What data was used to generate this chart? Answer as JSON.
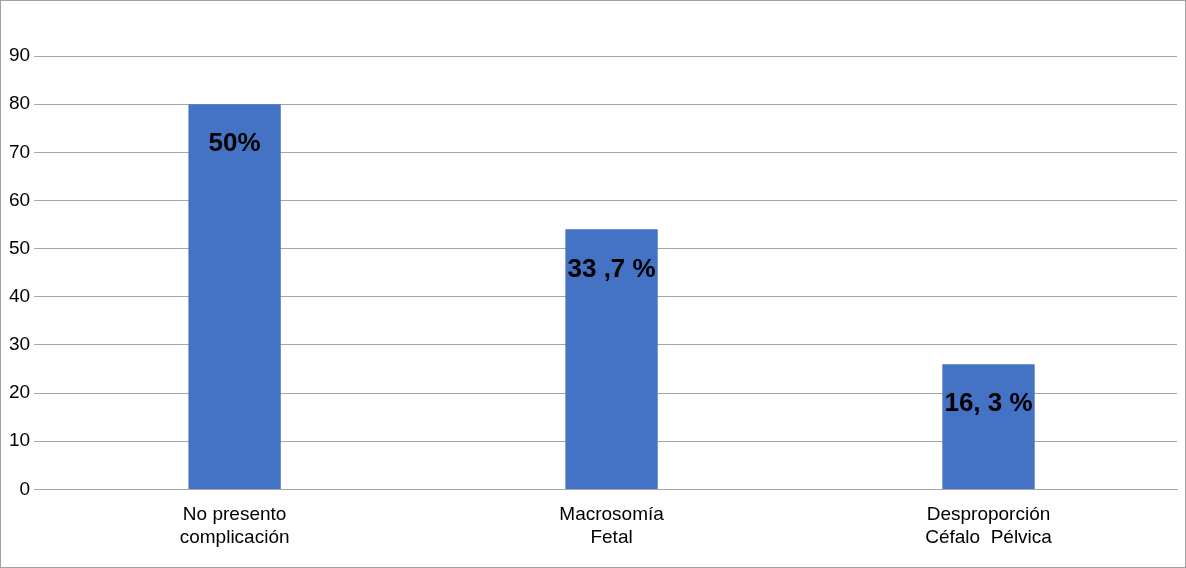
{
  "chart_data": {
    "type": "bar",
    "categories": [
      "No presento\ncomplicación",
      "Macrosomía\nFetal",
      "Desproporción\nCéfalo  Pélvica"
    ],
    "values": [
      80,
      54,
      26
    ],
    "color": "#4472c4",
    "annotations": [
      {
        "text": "50%",
        "x": "No presento\ncomplicación",
        "y": 80
      },
      {
        "text": "33 ,7 %",
        "x": "Macrosomía\nFetal",
        "y": 54
      },
      {
        "text": "16, 3 %",
        "x": "Desproporción\nCéfalo  Pélvica",
        "y": 26
      }
    ],
    "ylim": [
      0,
      90
    ],
    "yticks": [
      0,
      10,
      20,
      30,
      40,
      50,
      60,
      70,
      80,
      90
    ],
    "grid": "y",
    "legend": false
  }
}
